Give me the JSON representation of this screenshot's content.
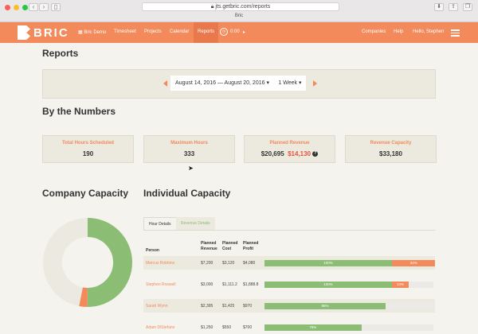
{
  "browser": {
    "url": "jts.getbric.com/reports",
    "tab_title": "Bric"
  },
  "nav": {
    "logo_text": "BRIC",
    "demo_label": "Bric Demo",
    "links": [
      "Timesheet",
      "Projects",
      "Calendar",
      "Reports"
    ],
    "timer": "0:00",
    "right_links": [
      "Companies",
      "Help",
      "Hello, Stephen"
    ]
  },
  "page": {
    "title": "Reports",
    "date_range": "August 14, 2016 — August 20, 2016 ▾",
    "period": "1 Week ▾"
  },
  "numbers": {
    "heading": "By the Numbers",
    "cards": [
      {
        "label": "Total Hours Scheduled",
        "value": "190"
      },
      {
        "label": "Maximum Hours",
        "value": "333"
      },
      {
        "label": "Planned Revenue",
        "value": "$20,695",
        "secondary": "$14,130"
      },
      {
        "label": "Revenue Capacity",
        "value": "$33,180"
      }
    ]
  },
  "company_capacity": {
    "heading": "Company Capacity",
    "donut": [
      {
        "label": "scheduled",
        "fraction": 0.5,
        "color": "#8cbd74"
      },
      {
        "label": "over",
        "fraction": 0.03,
        "color": "#f28a5b"
      },
      {
        "label": "available",
        "fraction": 0.47,
        "color": "#ece9e1"
      }
    ]
  },
  "individual_capacity": {
    "heading": "Individual Capacity",
    "tabs": [
      "Hour Details",
      "Revenue Details"
    ],
    "columns": [
      "Person",
      "Planned Revenue",
      "Planned Cost",
      "Planned Profit"
    ],
    "rows": [
      {
        "person": "Marcus Robbins",
        "revenue": "$7,200",
        "cost": "$3,120",
        "profit": "$4,080",
        "bar_label": "100%",
        "over_label": "34%",
        "fill": 1.0,
        "over": 0.34
      },
      {
        "person": "Stephen Roswell",
        "revenue": "$3,000",
        "cost": "$1,111.2",
        "profit": "$1,888.8",
        "bar_label": "100%",
        "over_label": "13%",
        "fill": 1.0,
        "over": 0.13
      },
      {
        "person": "Sarah Wynn",
        "revenue": "$2,395",
        "cost": "$1,425",
        "profit": "$970",
        "bar_label": "95%",
        "over_label": "",
        "fill": 0.95,
        "over": 0
      },
      {
        "person": "Adam DiStefano",
        "revenue": "$1,250",
        "cost": "$550",
        "profit": "$700",
        "bar_label": "76%",
        "over_label": "",
        "fill": 0.76,
        "over": 0
      }
    ]
  },
  "colors": {
    "accent": "#f28a5b",
    "green": "#8cbd74",
    "red": "#e9543c"
  }
}
